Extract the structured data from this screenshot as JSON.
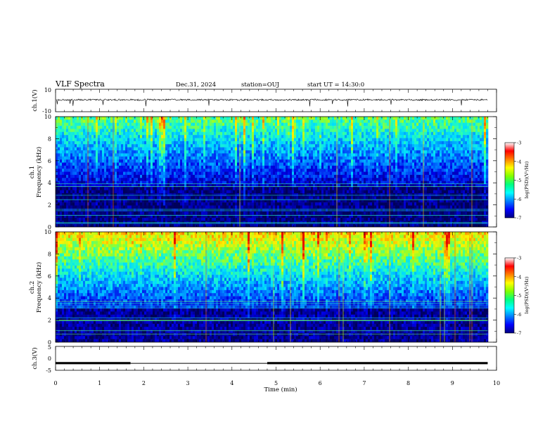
{
  "header": {
    "title": "VLF Spectra",
    "date": "Dec.31, 2024",
    "station": "station=OUJ",
    "start": "start UT = 14:30:0"
  },
  "chart_data": [
    {
      "type": "line",
      "ylabel": "ch.1(V)",
      "ylim": [
        -10,
        10
      ],
      "yticks": [
        "10",
        "-10"
      ],
      "description_values": {
        "baseline": 0,
        "noise_amplitude": 1
      }
    },
    {
      "type": "heatmap",
      "ylabel_line1": "ch.1",
      "ylabel_line2": "Frequency (kHz)",
      "ylim": [
        0,
        10
      ],
      "yticks": [
        "0",
        "2",
        "4",
        "6",
        "8",
        "10"
      ],
      "colorbar": {
        "label": "log(PSD)(V²/Hz)",
        "range": [
          -7,
          -3
        ],
        "ticks": [
          "-3",
          "-4",
          "-5",
          "-6",
          "-7"
        ],
        "colors": [
          "#000080",
          "#0000ff",
          "#0080ff",
          "#00ffff",
          "#00ff80",
          "#80ff00",
          "#ffff00",
          "#ff8000",
          "#ff0000",
          "#ffffff"
        ]
      }
    },
    {
      "type": "heatmap",
      "ylabel_line1": "ch.2",
      "ylabel_line2": "Frequency (kHz)",
      "ylim": [
        0,
        10
      ],
      "yticks": [
        "0",
        "2",
        "4",
        "6",
        "8",
        "10"
      ],
      "colorbar": {
        "label": "log(PSD)(V²/Hz)",
        "range": [
          -7,
          -3
        ],
        "ticks": [
          "-3",
          "-4",
          "-5",
          "-6",
          "-7"
        ],
        "colors": [
          "#000080",
          "#0000ff",
          "#0080ff",
          "#00ffff",
          "#00ff80",
          "#80ff00",
          "#ffff00",
          "#ff8000",
          "#ff0000",
          "#ffffff"
        ]
      }
    },
    {
      "type": "line",
      "ylabel": "ch.3(V)",
      "ylim": [
        -5,
        5
      ],
      "yticks": [
        "5",
        "0",
        "-5"
      ],
      "segments": [
        {
          "x_start": 0,
          "x_end": 1.7,
          "y": -2
        },
        {
          "x_start": 1.7,
          "x_end": 4.8,
          "y": -2.1
        },
        {
          "x_start": 4.8,
          "x_end": 9.8,
          "y": -2
        }
      ]
    }
  ],
  "xaxis": {
    "label": "Time (min)",
    "range": [
      0,
      10
    ],
    "ticks": [
      "0",
      "1",
      "2",
      "3",
      "4",
      "5",
      "6",
      "7",
      "8",
      "9",
      "10"
    ],
    "data_end": 9.8
  }
}
